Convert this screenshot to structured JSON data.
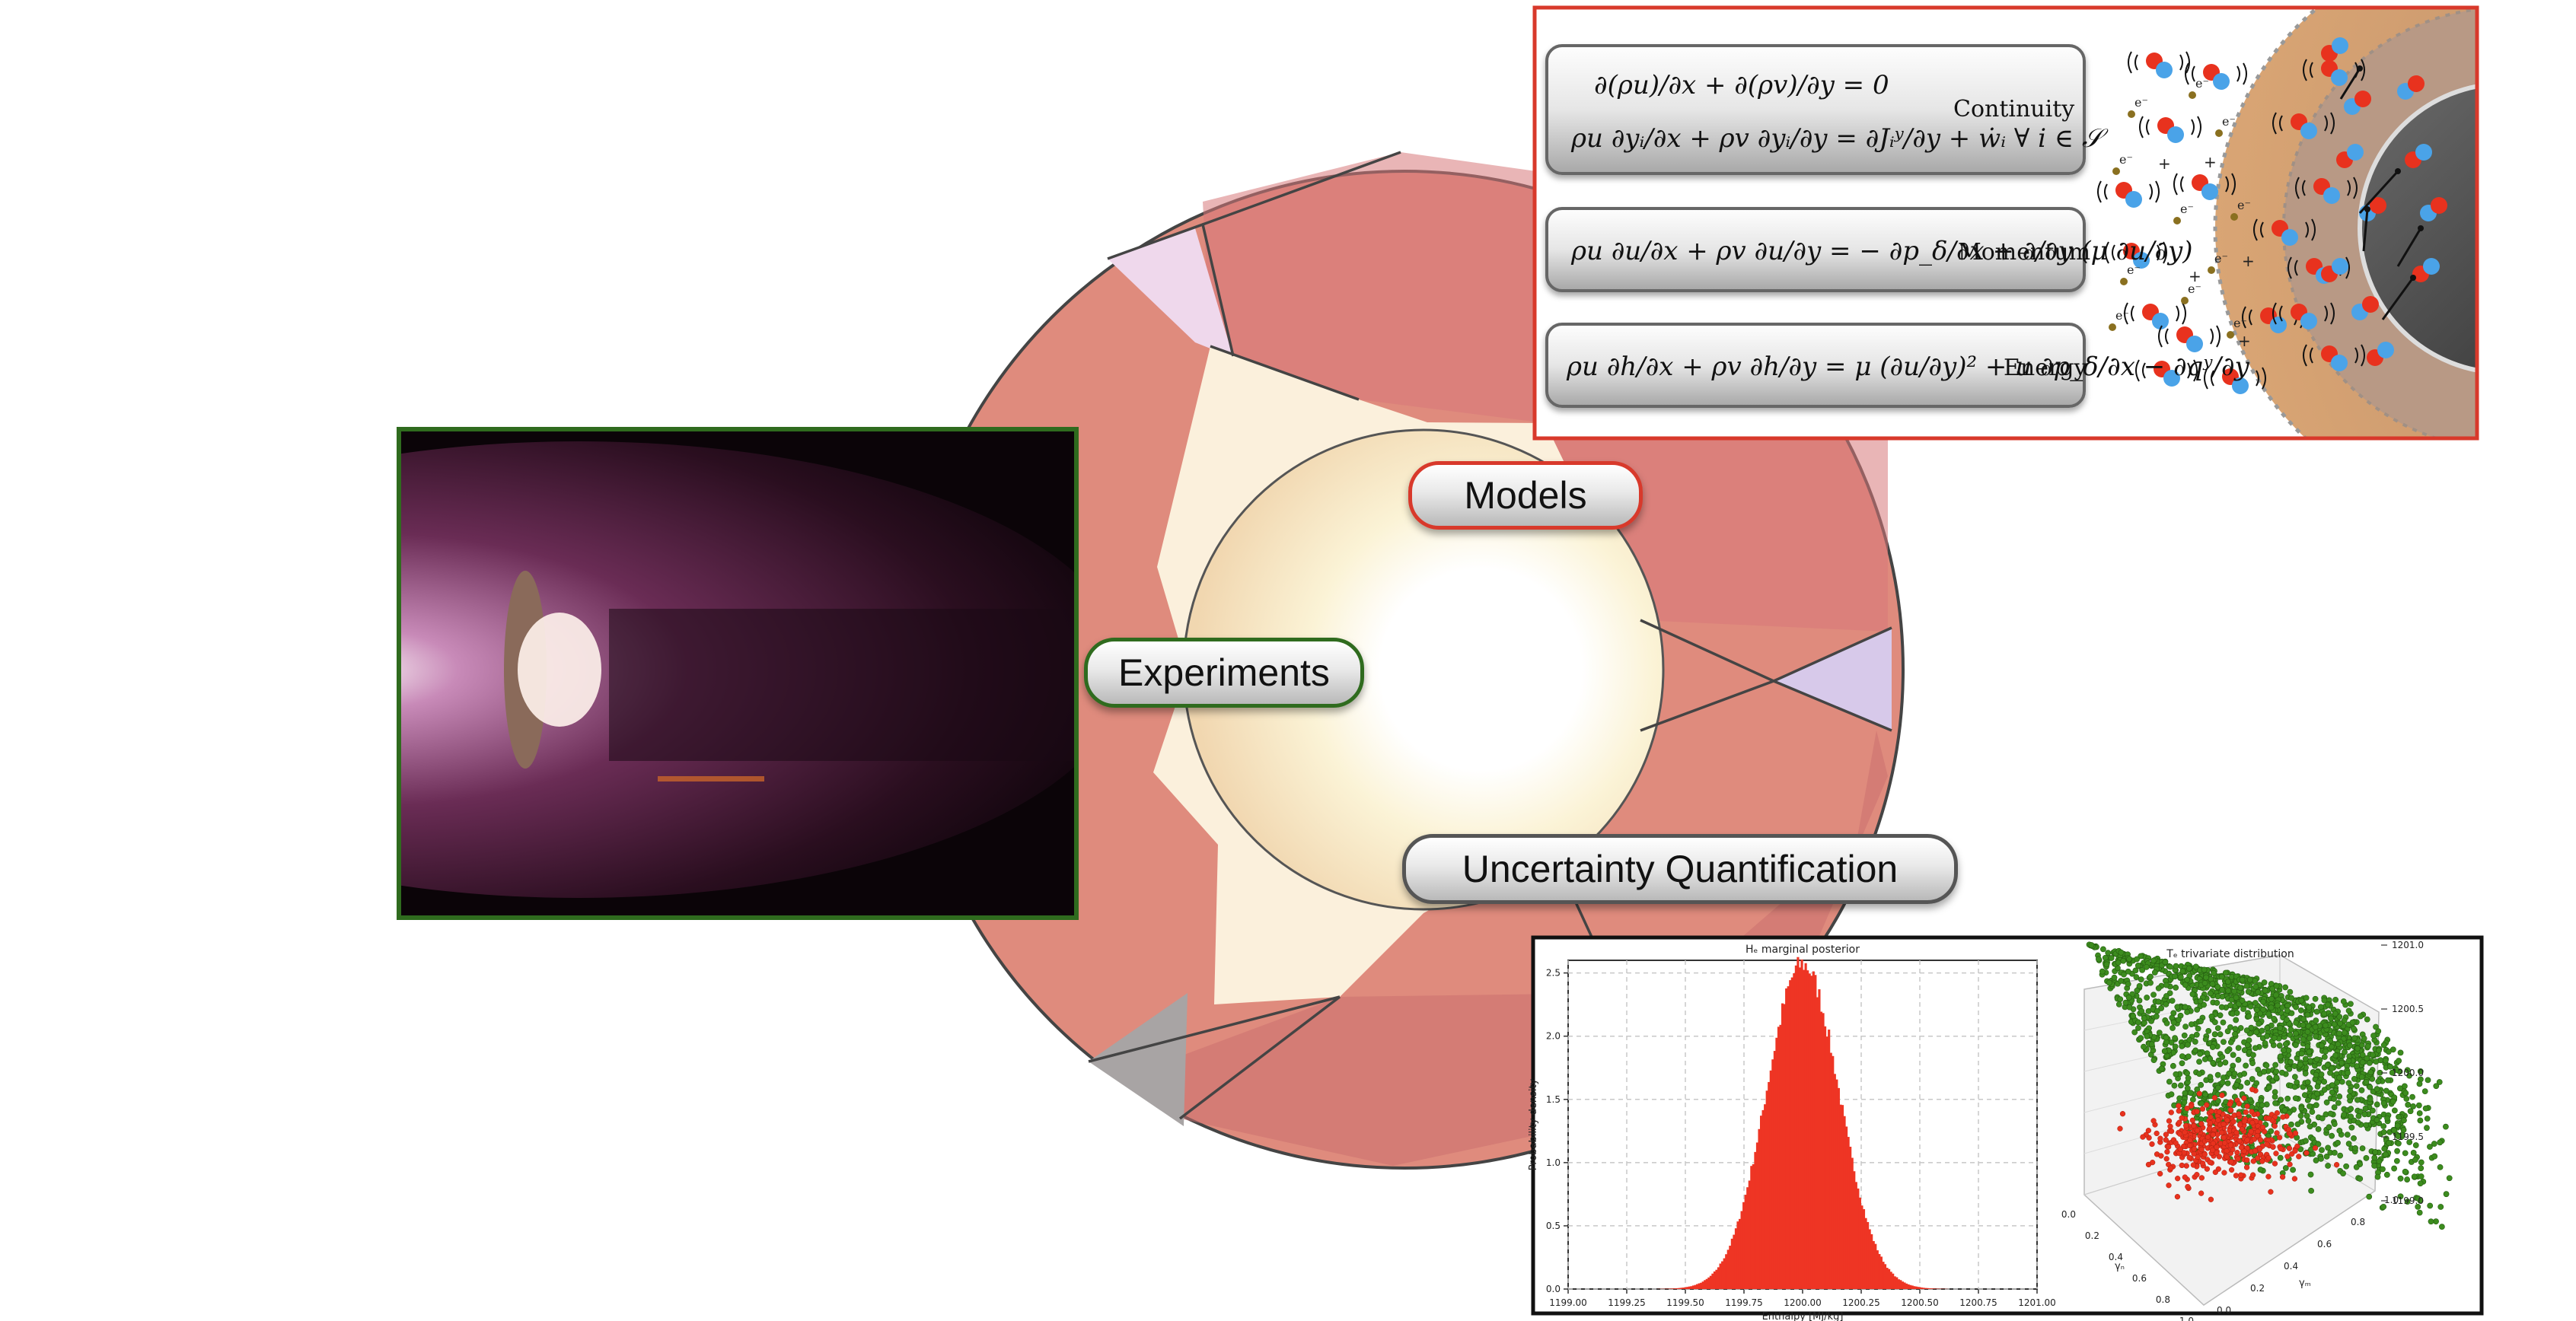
{
  "labels": {
    "models": "Models",
    "experiments": "Experiments",
    "uq": "Uncertainty Quantification"
  },
  "equations": {
    "continuity_name": "Continuity",
    "continuity_1": "∂(ρu)/∂x + ∂(ρv)/∂y = 0",
    "continuity_2": "ρu ∂yᵢ/∂x + ρv ∂yᵢ/∂y = ∂Jᵢʸ/∂y + ẇᵢ   ∀ i ∈ 𝒮",
    "momentum_name": "Momentum",
    "momentum": "ρu ∂u/∂x + ρv ∂u/∂y = − ∂p_δ/∂x + ∂/∂y (μ ∂u/∂y)",
    "energy_name": "Energy",
    "energy": "ρu ∂h/∂x + ρv ∂h/∂y = μ (∂u/∂y)² + u ∂p_δ/∂x − ∂qʸ/∂y"
  },
  "colors": {
    "experiments_border": "#2f6b1e",
    "models_border": "#d8392b",
    "uq_border": "#111111",
    "ring": "#d98478",
    "histogram": "#ee3524",
    "scatter_green": "#3c8c1e",
    "scatter_red": "#e8321e"
  },
  "species_labels": {
    "electron": "e⁻",
    "ion": "+"
  },
  "chart_data": [
    {
      "type": "bar",
      "title": "Hₑ marginal posterior",
      "xlabel": "Enthalpy [MJ/kg]",
      "ylabel": "Probability density",
      "xlim": [
        1199.0,
        1201.0
      ],
      "ylim": [
        0,
        2.6
      ],
      "xticks": [
        "1199.00",
        "1199.25",
        "1199.50",
        "1199.75",
        "1200.00",
        "1200.25",
        "1200.50",
        "1200.75",
        "1201.00"
      ],
      "yticks": [
        "0.0",
        "0.5",
        "1.0",
        "1.5",
        "2.0",
        "2.5"
      ],
      "distribution": {
        "shape": "normal",
        "mean": 1200.0,
        "std": 0.155,
        "peak_density": 2.57
      },
      "grid": true
    },
    {
      "type": "scatter",
      "title": "Tₑ trivariate distribution",
      "x_label": "γₙ",
      "y_label": "γₘ",
      "ztick_labels": [
        "1199.0",
        "1199.5",
        "1200.0",
        "1200.5",
        "1201.0"
      ],
      "x_tick_labels": [
        "0.0",
        "0.2",
        "0.4",
        "0.6",
        "0.8",
        "1.0"
      ],
      "y_tick_labels": [
        "0.0",
        "0.2",
        "0.4",
        "0.6",
        "0.8",
        "1.0"
      ],
      "series": [
        {
          "color": "#3c8c1e"
        },
        {
          "color": "#e8321e"
        }
      ]
    }
  ]
}
